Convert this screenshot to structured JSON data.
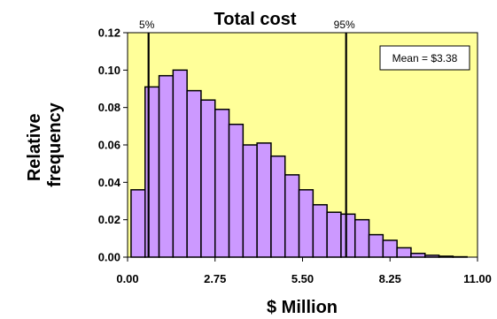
{
  "chart_data": {
    "type": "bar",
    "title": "Total cost",
    "xlabel": "$ Million",
    "ylabel": [
      "Relative",
      "frequency"
    ],
    "xlim": [
      0,
      11
    ],
    "ylim": [
      0,
      0.12
    ],
    "x_ticks": [
      "0.00",
      "2.75",
      "5.50",
      "8.25",
      "11.00"
    ],
    "y_ticks": [
      "0.00",
      "0.02",
      "0.04",
      "0.06",
      "0.08",
      "0.10",
      "0.12"
    ],
    "bin_width": 0.44,
    "bin_starts": [
      0.11,
      0.55,
      0.99,
      1.43,
      1.87,
      2.31,
      2.75,
      3.19,
      3.63,
      4.07,
      4.51,
      4.95,
      5.39,
      5.83,
      6.27,
      6.71,
      7.15,
      7.59,
      8.03,
      8.47,
      8.91,
      9.35,
      9.79,
      10.23
    ],
    "values": [
      0.036,
      0.091,
      0.097,
      0.1,
      0.089,
      0.084,
      0.079,
      0.071,
      0.06,
      0.061,
      0.054,
      0.044,
      0.036,
      0.028,
      0.024,
      0.023,
      0.02,
      0.012,
      0.009,
      0.005,
      0.002,
      0.001,
      0.0005,
      0.0002
    ],
    "percentile_lines": [
      {
        "label": "5%",
        "x": 0.66
      },
      {
        "label": "95%",
        "x": 6.87
      }
    ],
    "annotation": "Mean = $3.38",
    "plot_background": "#ffff99",
    "bar_color": "#cc99ff",
    "bar_edge_color": "#000000",
    "grid": false
  }
}
